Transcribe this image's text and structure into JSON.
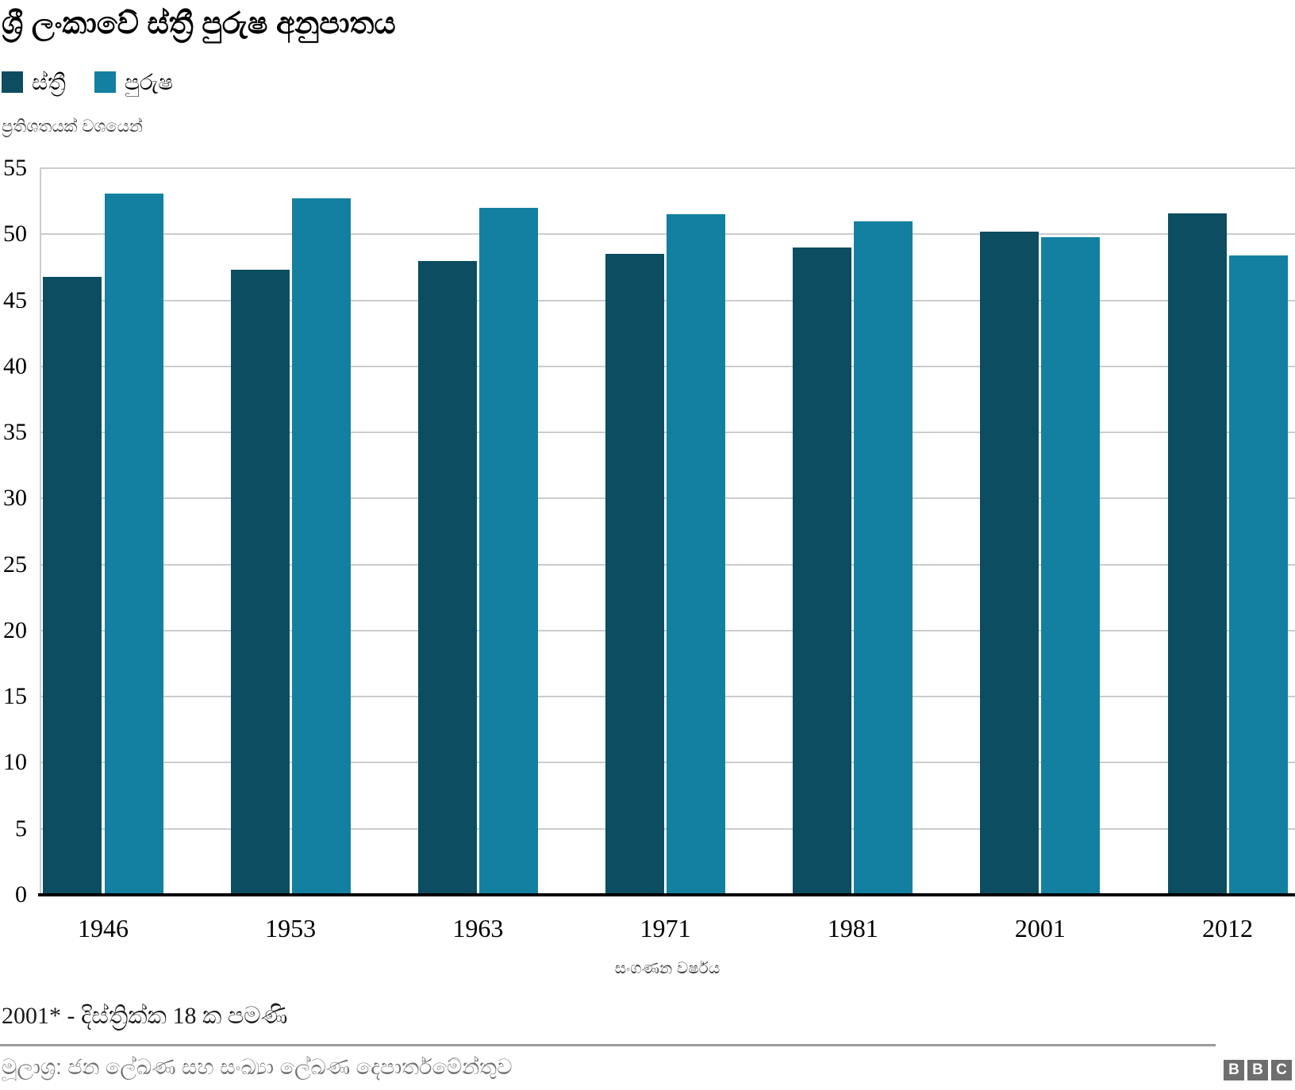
{
  "header": {
    "title": "ශ්‍රී ලංකාවේ ස්ත්‍රී පුරුෂ අනුපාතය"
  },
  "legend": {
    "items": [
      {
        "label": "ස්ත්‍රී",
        "color": "#0d4d61"
      },
      {
        "label": "පුරුෂ",
        "color": "#1380a1"
      }
    ]
  },
  "chart_data": {
    "type": "bar",
    "title": "ශ්‍රී ලංකාවේ ස්ත්‍රී පුරුෂ අනුපාතය",
    "unit_label": "ප්‍රතිශතයක් වශයෙන්",
    "xlabel": "සංගණන වර්ෂය",
    "ylabel": "",
    "categories": [
      "1946",
      "1953",
      "1963",
      "1971",
      "1981",
      "2001",
      "2012"
    ],
    "series": [
      {
        "name": "ස්ත්‍රී",
        "color": "#0d4d61",
        "values": [
          46.8,
          47.3,
          48.0,
          48.5,
          49.0,
          50.2,
          51.6
        ]
      },
      {
        "name": "පුරුෂ",
        "color": "#1380a1",
        "values": [
          53.1,
          52.7,
          52.0,
          51.5,
          51.0,
          49.8,
          48.4
        ]
      }
    ],
    "ylim": [
      0,
      55
    ],
    "y_ticks": [
      0,
      5,
      10,
      15,
      20,
      25,
      30,
      35,
      40,
      45,
      50,
      55
    ],
    "grid": "horizontal",
    "legend_position": "top-left",
    "axis_color": "#000000",
    "gridline_color": "#cccccc"
  },
  "footer": {
    "footnote": "2001* - දිස්ත්‍රික්ක 18 ක පමණි",
    "source": "මූලාශ්‍ර: ජන ලේඛණ සහ සංඛ්‍යා ලේඛණ දෙපාර්තමේන්තුව",
    "logo_letters": [
      "B",
      "B",
      "C"
    ]
  }
}
